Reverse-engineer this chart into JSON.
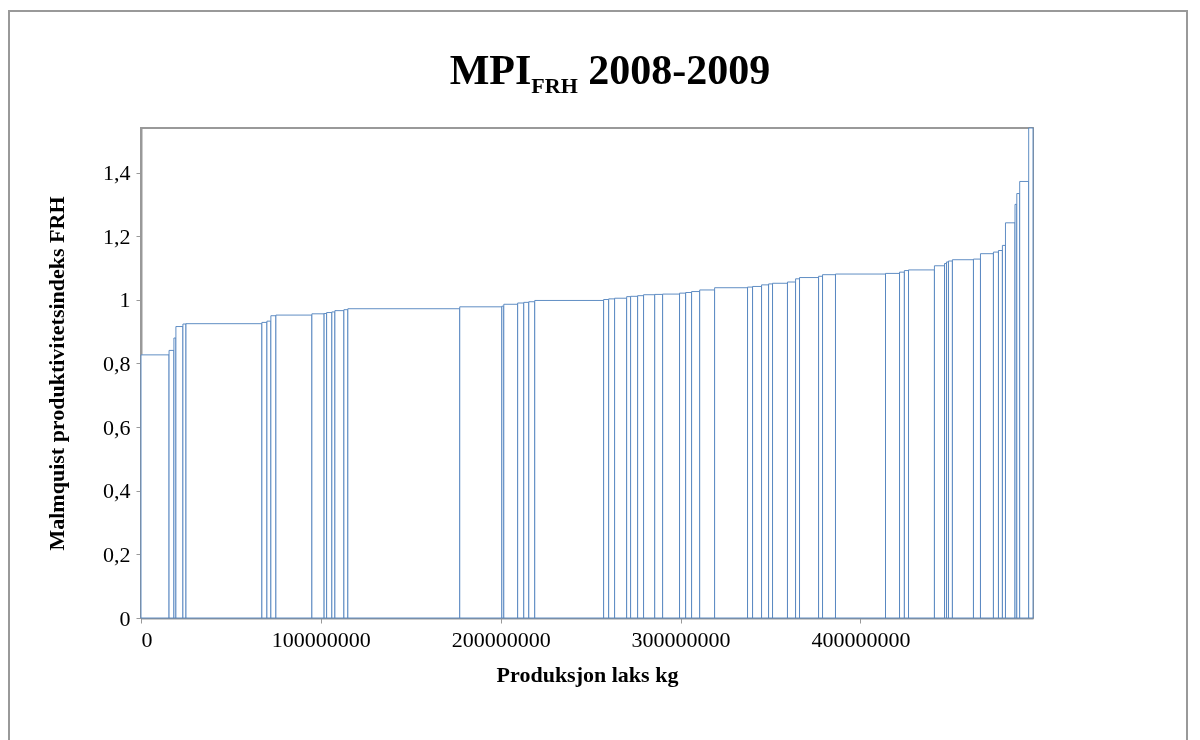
{
  "chart_data": {
    "type": "histogram",
    "title": "MPI$_{FRH}$ 2008-2009",
    "xlabel": "Produksjon laks kg",
    "ylabel": "Malmquist produktivitetsindeks FRH",
    "bins": [
      0,
      15600000,
      18300000,
      19400000,
      23300000,
      25000000,
      67200000,
      70000000,
      72200000,
      75000000,
      95000000,
      101800000,
      103200000,
      106100000,
      107800000,
      112800000,
      115000000,
      177200000,
      200600000,
      201700000,
      209400000,
      212800000,
      215600000,
      218900000,
      257200000,
      260000000,
      263300000,
      270000000,
      272200000,
      276100000,
      279400000,
      285600000,
      290000000,
      299400000,
      302800000,
      306100000,
      310600000,
      318900000,
      337200000,
      340000000,
      345000000,
      348900000,
      351100000,
      359400000,
      363900000,
      366100000,
      376700000,
      378900000,
      386100000,
      413900000,
      421700000,
      424400000,
      426700000,
      441100000,
      446700000,
      447800000,
      448900000,
      451100000,
      462800000,
      466700000,
      473900000,
      476700000,
      478900000,
      480600000,
      485900000,
      486900000,
      488500000,
      493500000,
      495900000
    ],
    "values": [
      0.827,
      0.841,
      0.88,
      0.916,
      0.924,
      0.925,
      0.929,
      0.933,
      0.95,
      0.952,
      0.956,
      0.957,
      0.96,
      0.962,
      0.966,
      0.969,
      0.972,
      0.978,
      0.98,
      0.986,
      0.99,
      0.992,
      0.994,
      0.998,
      1.001,
      1.003,
      1.005,
      1.01,
      1.011,
      1.013,
      1.016,
      1.017,
      1.018,
      1.021,
      1.023,
      1.026,
      1.031,
      1.038,
      1.04,
      1.042,
      1.047,
      1.05,
      1.052,
      1.056,
      1.066,
      1.07,
      1.074,
      1.079,
      1.081,
      1.083,
      1.087,
      1.092,
      1.094,
      1.107,
      1.114,
      1.119,
      1.122,
      1.126,
      1.128,
      1.145,
      1.15,
      1.155,
      1.171,
      1.242,
      1.3,
      1.334,
      1.372,
      1.54
    ],
    "color": "#4f81bd",
    "xlim": [
      0,
      495900000
    ],
    "xticks": [
      0,
      100000000,
      200000000,
      300000000,
      400000000
    ],
    "ylim": [
      0,
      1.54
    ],
    "yticks": [
      0,
      {
        "value": 0.2,
        "label": "0,2"
      },
      {
        "value": 0.4,
        "label": "0,4"
      },
      {
        "value": 0.6,
        "label": "0,6"
      },
      {
        "value": 0.8,
        "label": "0,8"
      },
      1,
      {
        "value": 1.2,
        "label": "1,2"
      },
      {
        "value": 1.4,
        "label": "1,4"
      }
    ]
  }
}
